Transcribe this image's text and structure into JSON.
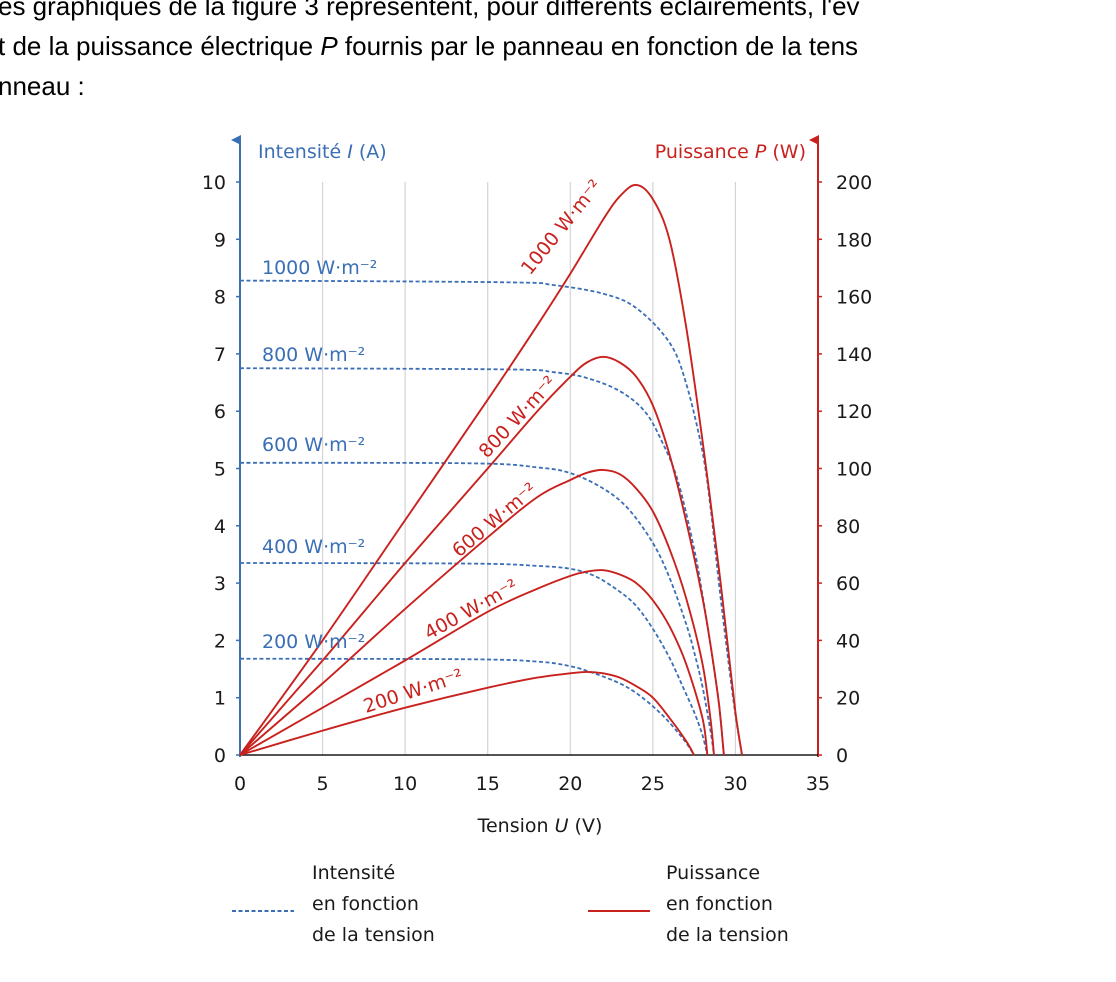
{
  "intro": {
    "line1": "es graphiques de la figure 3 représentent, pour différents éclairements, l'év",
    "line2_before": "t de la puissance électrique ",
    "line2_var": "P",
    "line2_after": " fournis par le panneau en fonction de la tens",
    "line3": "nneau :"
  },
  "colors": {
    "current": "#3a6fb5",
    "power": "#c9211e",
    "axis": "#1a1a1a",
    "grid": "#d4d4d4"
  },
  "chart_data": {
    "type": "line",
    "xlabel": {
      "text": "Tension ",
      "var": "U",
      "unit": " (V)"
    },
    "ylabel_left": {
      "text": "Intensité ",
      "var": "I",
      "unit": " (A)"
    },
    "ylabel_right": {
      "text": "Puissance ",
      "var": "P",
      "unit": " (W)"
    },
    "xlim": [
      0,
      35
    ],
    "ylim_left": [
      0,
      10
    ],
    "ylim_right": [
      0,
      200
    ],
    "x_ticks": [
      0,
      5,
      10,
      15,
      20,
      25,
      30,
      35
    ],
    "y_left_ticks": [
      0,
      1,
      2,
      3,
      4,
      5,
      6,
      7,
      8,
      9,
      10
    ],
    "y_right_ticks": [
      0,
      20,
      40,
      60,
      80,
      100,
      120,
      140,
      160,
      180,
      200
    ],
    "grid": "vertical",
    "current_series": [
      {
        "name": "1000 W·m⁻²",
        "x": [
          0,
          16,
          19,
          22,
          24,
          26,
          27,
          28,
          28.5,
          29,
          29.5,
          30,
          30.4
        ],
        "y": [
          8.28,
          8.25,
          8.2,
          8.05,
          7.8,
          7.2,
          6.5,
          5.3,
          4.3,
          3.0,
          1.8,
          0.7,
          0
        ]
      },
      {
        "name": "800 W·m⁻²",
        "x": [
          0,
          16,
          19,
          21,
          23,
          24.5,
          25.5,
          26.5,
          27.5,
          28,
          28.5,
          29,
          29.3
        ],
        "y": [
          6.75,
          6.73,
          6.68,
          6.58,
          6.35,
          6.0,
          5.5,
          4.8,
          3.6,
          2.8,
          1.9,
          0.9,
          0
        ]
      },
      {
        "name": "600 W·m⁻²",
        "x": [
          0,
          14,
          18,
          20,
          22,
          23.5,
          25,
          26,
          27,
          27.5,
          28,
          28.5,
          28.7
        ],
        "y": [
          5.1,
          5.09,
          5.02,
          4.92,
          4.65,
          4.3,
          3.7,
          3.1,
          2.3,
          1.8,
          1.2,
          0.4,
          0
        ]
      },
      {
        "name": "400 W·m⁻²",
        "x": [
          0,
          14,
          18,
          20,
          21.5,
          23,
          24,
          25,
          26,
          26.8,
          27.5,
          28,
          28.3
        ],
        "y": [
          3.35,
          3.34,
          3.3,
          3.25,
          3.12,
          2.85,
          2.6,
          2.2,
          1.7,
          1.2,
          0.75,
          0.35,
          0
        ]
      },
      {
        "name": "200 W·m⁻²",
        "x": [
          0,
          14,
          18,
          20,
          21.5,
          23,
          24,
          25,
          25.8,
          26.5,
          27,
          27.5
        ],
        "y": [
          1.68,
          1.67,
          1.63,
          1.55,
          1.42,
          1.25,
          1.08,
          0.85,
          0.63,
          0.4,
          0.22,
          0
        ]
      }
    ],
    "power_series": [
      {
        "name": "1000 W·m⁻²",
        "x": [
          0,
          5,
          10,
          15,
          18,
          20,
          22,
          23,
          24,
          25,
          26,
          27,
          28,
          29,
          29.5,
          30,
          30.4
        ],
        "y": [
          0,
          40,
          82,
          124,
          150,
          168,
          187,
          195,
          199,
          194,
          180,
          150,
          110,
          65,
          40,
          15,
          0
        ]
      },
      {
        "name": "800 W·m⁻²",
        "x": [
          0,
          5,
          10,
          15,
          18,
          20,
          21,
          22,
          23,
          24,
          25,
          26,
          27,
          28,
          28.5,
          29,
          29.3
        ],
        "y": [
          0,
          33,
          67,
          100,
          120,
          132,
          137,
          139,
          137,
          132,
          122,
          105,
          82,
          55,
          38,
          18,
          0
        ]
      },
      {
        "name": "600 W·m⁻²",
        "x": [
          0,
          5,
          10,
          15,
          18,
          20,
          21,
          22,
          23,
          24,
          25,
          26,
          27,
          28,
          28.5,
          28.7
        ],
        "y": [
          0,
          25,
          51,
          76,
          90,
          96,
          98.5,
          99.5,
          98,
          93,
          85,
          72,
          55,
          32,
          12,
          0
        ]
      },
      {
        "name": "400 W·m⁻²",
        "x": [
          0,
          5,
          10,
          15,
          18,
          20,
          21,
          22,
          23,
          24,
          25,
          26,
          27,
          28,
          28.3
        ],
        "y": [
          0,
          16.5,
          33,
          50,
          58,
          62.5,
          64,
          64.5,
          63,
          60,
          54,
          45,
          32,
          13,
          0
        ]
      },
      {
        "name": "200 W·m⁻²",
        "x": [
          0,
          5,
          10,
          15,
          18,
          20,
          21,
          22,
          23,
          24,
          25,
          26,
          27,
          27.5
        ],
        "y": [
          0,
          8.5,
          16.5,
          23.5,
          27,
          28.5,
          29,
          28.5,
          27,
          24,
          20,
          13,
          5,
          0
        ]
      }
    ],
    "legend": {
      "current": [
        "Intensité",
        "en fonction",
        "de la tension"
      ],
      "power": [
        "Puissance",
        "en fonction",
        "de la tension"
      ]
    }
  }
}
